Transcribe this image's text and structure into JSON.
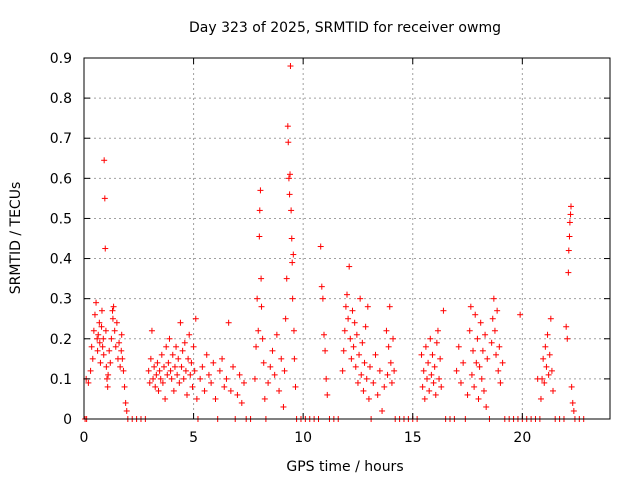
{
  "chart_data": {
    "type": "scatter",
    "title": "Day 323 of 2025, SRMTID for receiver owmg",
    "xlabel": "GPS time / hours",
    "ylabel": "SRMTID / TECUs",
    "xlim": [
      0,
      24
    ],
    "ylim": [
      0,
      0.9
    ],
    "xticks": [
      0,
      5,
      10,
      15,
      20
    ],
    "xtick_labels": [
      "0",
      "5",
      "10",
      "15",
      "20"
    ],
    "yticks": [
      0,
      0.1,
      0.2,
      0.3,
      0.4,
      0.5,
      0.6,
      0.7,
      0.8,
      0.9
    ],
    "ytick_labels": [
      "0",
      "0.1",
      "0.2",
      "0.3",
      "0.4",
      "0.5",
      "0.6",
      "0.7",
      "0.8",
      "0.9"
    ],
    "grid": true,
    "marker": "+",
    "color": "#ff0000",
    "series": [
      {
        "name": "SRMTID",
        "points": [
          [
            0.05,
            0.0
          ],
          [
            0.12,
            0.0
          ],
          [
            0.1,
            0.1
          ],
          [
            0.2,
            0.09
          ],
          [
            0.3,
            0.12
          ],
          [
            0.35,
            0.18
          ],
          [
            0.4,
            0.15
          ],
          [
            0.45,
            0.22
          ],
          [
            0.5,
            0.26
          ],
          [
            0.55,
            0.29
          ],
          [
            0.6,
            0.2
          ],
          [
            0.62,
            0.17
          ],
          [
            0.65,
            0.21
          ],
          [
            0.7,
            0.24
          ],
          [
            0.72,
            0.19
          ],
          [
            0.75,
            0.14
          ],
          [
            0.8,
            0.23
          ],
          [
            0.82,
            0.27
          ],
          [
            0.85,
            0.18
          ],
          [
            0.88,
            0.2
          ],
          [
            0.9,
            0.16
          ],
          [
            0.92,
            0.645
          ],
          [
            0.95,
            0.55
          ],
          [
            0.97,
            0.425
          ],
          [
            1.0,
            0.22
          ],
          [
            1.02,
            0.13
          ],
          [
            1.05,
            0.1
          ],
          [
            1.08,
            0.08
          ],
          [
            1.1,
            0.11
          ],
          [
            1.15,
            0.17
          ],
          [
            1.2,
            0.14
          ],
          [
            1.25,
            0.2
          ],
          [
            1.3,
            0.27
          ],
          [
            1.32,
            0.25
          ],
          [
            1.35,
            0.28
          ],
          [
            1.4,
            0.22
          ],
          [
            1.45,
            0.18
          ],
          [
            1.5,
            0.24
          ],
          [
            1.55,
            0.15
          ],
          [
            1.6,
            0.19
          ],
          [
            1.65,
            0.13
          ],
          [
            1.7,
            0.17
          ],
          [
            1.72,
            0.21
          ],
          [
            1.75,
            0.15
          ],
          [
            1.8,
            0.12
          ],
          [
            1.85,
            0.08
          ],
          [
            1.9,
            0.04
          ],
          [
            1.95,
            0.02
          ],
          [
            2.0,
            0.0
          ],
          [
            2.2,
            0.0
          ],
          [
            2.4,
            0.0
          ],
          [
            2.6,
            0.0
          ],
          [
            2.8,
            0.0
          ],
          [
            2.95,
            0.12
          ],
          [
            3.0,
            0.09
          ],
          [
            3.05,
            0.15
          ],
          [
            3.1,
            0.22
          ],
          [
            3.15,
            0.1
          ],
          [
            3.2,
            0.13
          ],
          [
            3.25,
            0.08
          ],
          [
            3.3,
            0.11
          ],
          [
            3.35,
            0.14
          ],
          [
            3.4,
            0.07
          ],
          [
            3.45,
            0.12
          ],
          [
            3.5,
            0.1
          ],
          [
            3.55,
            0.16
          ],
          [
            3.6,
            0.09
          ],
          [
            3.65,
            0.13
          ],
          [
            3.7,
            0.05
          ],
          [
            3.75,
            0.18
          ],
          [
            3.8,
            0.11
          ],
          [
            3.85,
            0.14
          ],
          [
            3.9,
            0.2
          ],
          [
            3.95,
            0.12
          ],
          [
            4.0,
            0.1
          ],
          [
            4.05,
            0.16
          ],
          [
            4.1,
            0.07
          ],
          [
            4.15,
            0.13
          ],
          [
            4.2,
            0.18
          ],
          [
            4.25,
            0.11
          ],
          [
            4.3,
            0.15
          ],
          [
            4.35,
            0.09
          ],
          [
            4.4,
            0.24
          ],
          [
            4.45,
            0.13
          ],
          [
            4.5,
            0.17
          ],
          [
            4.55,
            0.1
          ],
          [
            4.6,
            0.19
          ],
          [
            4.65,
            0.12
          ],
          [
            4.7,
            0.06
          ],
          [
            4.75,
            0.15
          ],
          [
            4.8,
            0.21
          ],
          [
            4.85,
            0.11
          ],
          [
            4.9,
            0.14
          ],
          [
            4.95,
            0.08
          ],
          [
            5.0,
            0.18
          ],
          [
            5.05,
            0.12
          ],
          [
            5.1,
            0.25
          ],
          [
            5.15,
            0.05
          ],
          [
            5.2,
            0.0
          ],
          [
            5.3,
            0.1
          ],
          [
            5.4,
            0.13
          ],
          [
            5.5,
            0.07
          ],
          [
            5.6,
            0.16
          ],
          [
            5.7,
            0.11
          ],
          [
            5.8,
            0.09
          ],
          [
            5.9,
            0.14
          ],
          [
            6.0,
            0.05
          ],
          [
            6.1,
            0.0
          ],
          [
            6.2,
            0.12
          ],
          [
            6.3,
            0.15
          ],
          [
            6.4,
            0.08
          ],
          [
            6.5,
            0.1
          ],
          [
            6.6,
            0.24
          ],
          [
            6.7,
            0.07
          ],
          [
            6.8,
            0.13
          ],
          [
            6.9,
            0.0
          ],
          [
            7.0,
            0.06
          ],
          [
            7.1,
            0.11
          ],
          [
            7.2,
            0.04
          ],
          [
            7.3,
            0.09
          ],
          [
            7.4,
            0.0
          ],
          [
            7.6,
            0.0
          ],
          [
            7.8,
            0.1
          ],
          [
            7.85,
            0.18
          ],
          [
            7.9,
            0.3
          ],
          [
            7.95,
            0.22
          ],
          [
            8.0,
            0.455
          ],
          [
            8.02,
            0.52
          ],
          [
            8.05,
            0.57
          ],
          [
            8.08,
            0.35
          ],
          [
            8.1,
            0.28
          ],
          [
            8.15,
            0.2
          ],
          [
            8.2,
            0.14
          ],
          [
            8.25,
            0.05
          ],
          [
            8.3,
            0.0
          ],
          [
            8.4,
            0.09
          ],
          [
            8.5,
            0.13
          ],
          [
            8.6,
            0.17
          ],
          [
            8.7,
            0.11
          ],
          [
            8.8,
            0.21
          ],
          [
            8.9,
            0.07
          ],
          [
            9.0,
            0.15
          ],
          [
            9.1,
            0.03
          ],
          [
            9.15,
            0.12
          ],
          [
            9.2,
            0.25
          ],
          [
            9.25,
            0.35
          ],
          [
            9.3,
            0.73
          ],
          [
            9.32,
            0.69
          ],
          [
            9.35,
            0.6
          ],
          [
            9.38,
            0.56
          ],
          [
            9.4,
            0.61
          ],
          [
            9.42,
            0.88
          ],
          [
            9.45,
            0.52
          ],
          [
            9.48,
            0.45
          ],
          [
            9.5,
            0.39
          ],
          [
            9.52,
            0.3
          ],
          [
            9.55,
            0.41
          ],
          [
            9.58,
            0.22
          ],
          [
            9.6,
            0.15
          ],
          [
            9.65,
            0.08
          ],
          [
            9.7,
            0.0
          ],
          [
            9.9,
            0.0
          ],
          [
            10.1,
            0.0
          ],
          [
            10.3,
            0.0
          ],
          [
            10.5,
            0.0
          ],
          [
            10.7,
            0.0
          ],
          [
            10.8,
            0.43
          ],
          [
            10.85,
            0.33
          ],
          [
            10.9,
            0.3
          ],
          [
            10.95,
            0.21
          ],
          [
            11.0,
            0.17
          ],
          [
            11.05,
            0.1
          ],
          [
            11.1,
            0.06
          ],
          [
            11.2,
            0.0
          ],
          [
            11.4,
            0.0
          ],
          [
            11.6,
            0.0
          ],
          [
            11.8,
            0.12
          ],
          [
            11.85,
            0.17
          ],
          [
            11.9,
            0.22
          ],
          [
            11.95,
            0.28
          ],
          [
            12.0,
            0.31
          ],
          [
            12.05,
            0.25
          ],
          [
            12.1,
            0.38
          ],
          [
            12.15,
            0.2
          ],
          [
            12.2,
            0.15
          ],
          [
            12.25,
            0.27
          ],
          [
            12.3,
            0.18
          ],
          [
            12.35,
            0.24
          ],
          [
            12.4,
            0.13
          ],
          [
            12.45,
            0.21
          ],
          [
            12.5,
            0.09
          ],
          [
            12.55,
            0.16
          ],
          [
            12.6,
            0.3
          ],
          [
            12.65,
            0.11
          ],
          [
            12.7,
            0.19
          ],
          [
            12.75,
            0.07
          ],
          [
            12.8,
            0.14
          ],
          [
            12.85,
            0.23
          ],
          [
            12.9,
            0.1
          ],
          [
            12.95,
            0.28
          ],
          [
            13.0,
            0.05
          ],
          [
            13.05,
            0.13
          ],
          [
            13.1,
            0.0
          ],
          [
            13.2,
            0.09
          ],
          [
            13.3,
            0.16
          ],
          [
            13.4,
            0.06
          ],
          [
            13.5,
            0.12
          ],
          [
            13.6,
            0.02
          ],
          [
            13.7,
            0.08
          ],
          [
            13.8,
            0.22
          ],
          [
            13.85,
            0.11
          ],
          [
            13.9,
            0.18
          ],
          [
            13.95,
            0.28
          ],
          [
            14.0,
            0.14
          ],
          [
            14.05,
            0.09
          ],
          [
            14.1,
            0.2
          ],
          [
            14.15,
            0.12
          ],
          [
            14.2,
            0.0
          ],
          [
            14.4,
            0.0
          ],
          [
            14.6,
            0.0
          ],
          [
            14.8,
            0.0
          ],
          [
            15.0,
            0.0
          ],
          [
            15.2,
            0.0
          ],
          [
            15.4,
            0.16
          ],
          [
            15.45,
            0.08
          ],
          [
            15.5,
            0.12
          ],
          [
            15.55,
            0.05
          ],
          [
            15.6,
            0.18
          ],
          [
            15.65,
            0.1
          ],
          [
            15.7,
            0.14
          ],
          [
            15.75,
            0.07
          ],
          [
            15.8,
            0.2
          ],
          [
            15.85,
            0.11
          ],
          [
            15.9,
            0.16
          ],
          [
            15.95,
            0.09
          ],
          [
            16.0,
            0.13
          ],
          [
            16.05,
            0.06
          ],
          [
            16.1,
            0.19
          ],
          [
            16.15,
            0.22
          ],
          [
            16.2,
            0.1
          ],
          [
            16.25,
            0.15
          ],
          [
            16.3,
            0.08
          ],
          [
            16.4,
            0.27
          ],
          [
            16.5,
            0.0
          ],
          [
            16.7,
            0.0
          ],
          [
            16.9,
            0.0
          ],
          [
            17.0,
            0.12
          ],
          [
            17.1,
            0.18
          ],
          [
            17.2,
            0.09
          ],
          [
            17.3,
            0.14
          ],
          [
            17.4,
            0.0
          ],
          [
            17.5,
            0.06
          ],
          [
            17.6,
            0.22
          ],
          [
            17.65,
            0.28
          ],
          [
            17.7,
            0.11
          ],
          [
            17.75,
            0.17
          ],
          [
            17.8,
            0.08
          ],
          [
            17.85,
            0.26
          ],
          [
            17.9,
            0.14
          ],
          [
            17.95,
            0.2
          ],
          [
            18.0,
            0.05
          ],
          [
            18.05,
            0.13
          ],
          [
            18.1,
            0.24
          ],
          [
            18.15,
            0.1
          ],
          [
            18.2,
            0.17
          ],
          [
            18.25,
            0.07
          ],
          [
            18.3,
            0.21
          ],
          [
            18.35,
            0.03
          ],
          [
            18.4,
            0.15
          ],
          [
            18.5,
            0.0
          ],
          [
            18.6,
            0.19
          ],
          [
            18.65,
            0.25
          ],
          [
            18.7,
            0.3
          ],
          [
            18.75,
            0.22
          ],
          [
            18.8,
            0.16
          ],
          [
            18.85,
            0.27
          ],
          [
            18.9,
            0.12
          ],
          [
            18.95,
            0.18
          ],
          [
            19.0,
            0.09
          ],
          [
            19.1,
            0.14
          ],
          [
            19.2,
            0.0
          ],
          [
            19.4,
            0.0
          ],
          [
            19.6,
            0.0
          ],
          [
            19.8,
            0.0
          ],
          [
            19.9,
            0.26
          ],
          [
            20.0,
            0.0
          ],
          [
            20.2,
            0.0
          ],
          [
            20.4,
            0.0
          ],
          [
            20.6,
            0.0
          ],
          [
            20.7,
            0.1
          ],
          [
            20.8,
            0.0
          ],
          [
            20.85,
            0.05
          ],
          [
            20.9,
            0.1
          ],
          [
            20.95,
            0.15
          ],
          [
            21.0,
            0.09
          ],
          [
            21.05,
            0.18
          ],
          [
            21.1,
            0.13
          ],
          [
            21.15,
            0.21
          ],
          [
            21.2,
            0.11
          ],
          [
            21.25,
            0.16
          ],
          [
            21.3,
            0.25
          ],
          [
            21.35,
            0.12
          ],
          [
            21.4,
            0.07
          ],
          [
            21.5,
            0.0
          ],
          [
            21.7,
            0.0
          ],
          [
            21.9,
            0.0
          ],
          [
            22.0,
            0.23
          ],
          [
            22.05,
            0.2
          ],
          [
            22.1,
            0.365
          ],
          [
            22.12,
            0.42
          ],
          [
            22.15,
            0.455
          ],
          [
            22.17,
            0.49
          ],
          [
            22.2,
            0.51
          ],
          [
            22.22,
            0.53
          ],
          [
            22.25,
            0.08
          ],
          [
            22.3,
            0.04
          ],
          [
            22.35,
            0.02
          ],
          [
            22.4,
            0.0
          ],
          [
            22.6,
            0.0
          ],
          [
            22.8,
            0.0
          ]
        ]
      }
    ]
  }
}
